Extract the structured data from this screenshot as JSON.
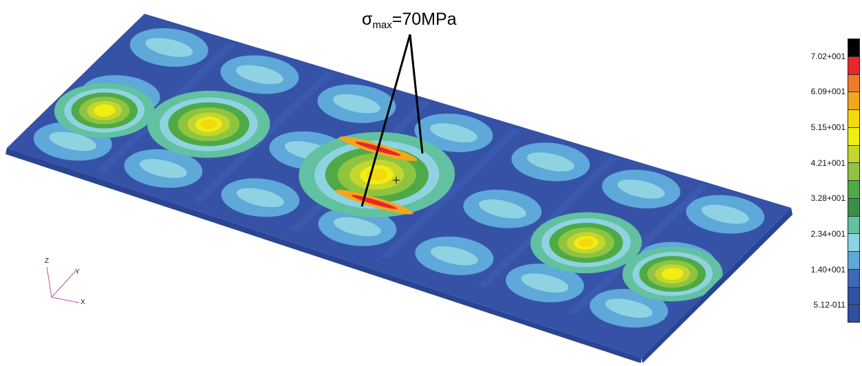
{
  "annotation": {
    "symbol": "σ",
    "subscript": "max",
    "value": "=70MPa"
  },
  "legend": {
    "colors": [
      "#000000",
      "#e8262b",
      "#ef7a29",
      "#f2a71e",
      "#f3d90f",
      "#f0ee12",
      "#c4d62e",
      "#8ec43f",
      "#4eaa47",
      "#3c8d48",
      "#61c1a0",
      "#8fd3e2",
      "#5ea8da",
      "#4068b8",
      "#3251a2",
      "#2f4ea0"
    ],
    "labels": [
      "7.02+001",
      "6.09+001",
      "5.15+001",
      "4.21+001",
      "3.28+001",
      "2.34+001",
      "1.40+001",
      "5.12-011"
    ]
  },
  "axes": {
    "x": "X",
    "y": "Y",
    "z": "Z"
  }
}
